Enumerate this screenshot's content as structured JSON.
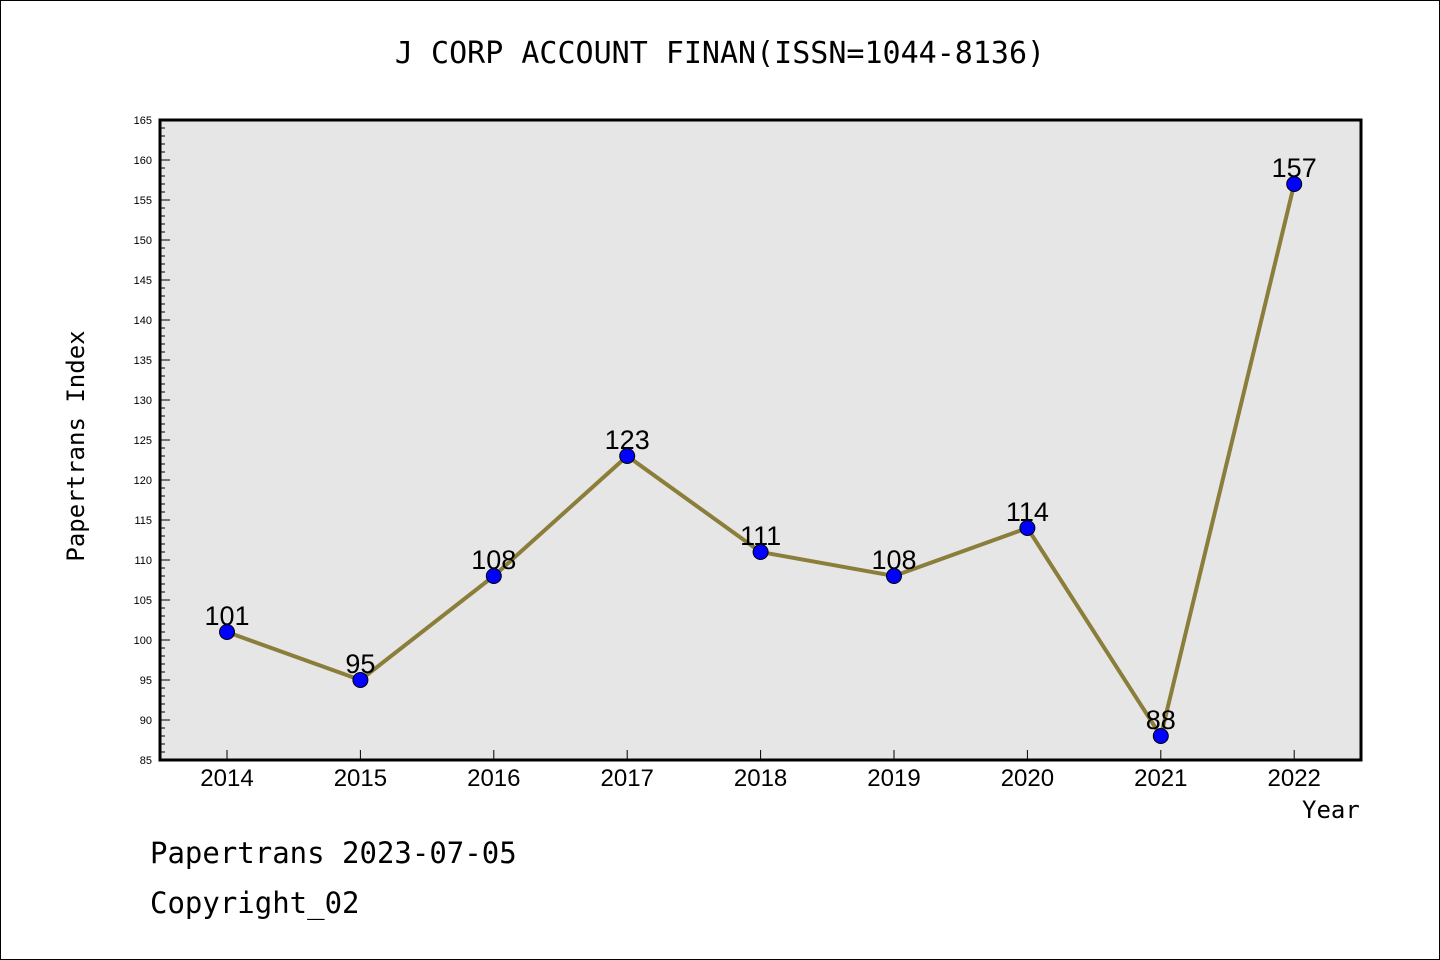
{
  "chart_data": {
    "type": "line",
    "title": "J CORP ACCOUNT FINAN(ISSN=1044-8136)",
    "xlabel": "Year",
    "ylabel": "Papertrans Index",
    "categories": [
      "2014",
      "2015",
      "2016",
      "2017",
      "2018",
      "2019",
      "2020",
      "2021",
      "2022"
    ],
    "series": [
      {
        "values": [
          101,
          95,
          108,
          123,
          111,
          108,
          114,
          88,
          157
        ]
      }
    ],
    "ylim": [
      85,
      165
    ],
    "ytick_step": 5,
    "grid": false,
    "line_color": "#8b7d3a",
    "marker_color": "#0000ff",
    "plot_background": "#e6e6e6"
  },
  "footer": {
    "line1": "Papertrans 2023-07-05",
    "line2": "Copyright_02"
  }
}
